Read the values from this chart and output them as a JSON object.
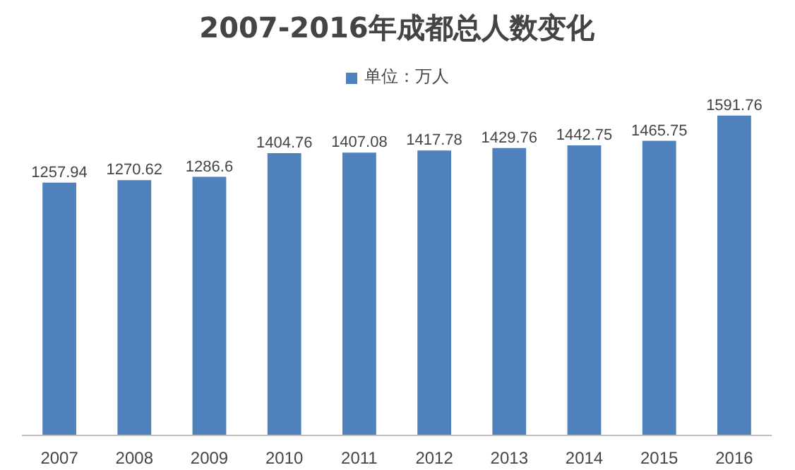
{
  "chart_data": {
    "type": "bar",
    "title": "2007-2016年成都总人数变化",
    "categories": [
      "2007",
      "2008",
      "2009",
      "2010",
      "2011",
      "2012",
      "2013",
      "2014",
      "2015",
      "2016"
    ],
    "series": [
      {
        "name": "单位：万人",
        "color": "#4f81bd",
        "values": [
          1257.94,
          1270.62,
          1286.6,
          1404.76,
          1407.08,
          1417.78,
          1429.76,
          1442.75,
          1465.75,
          1591.76
        ]
      }
    ],
    "data_labels": true,
    "legend": "top",
    "tick_labels": "x",
    "grid": false
  }
}
